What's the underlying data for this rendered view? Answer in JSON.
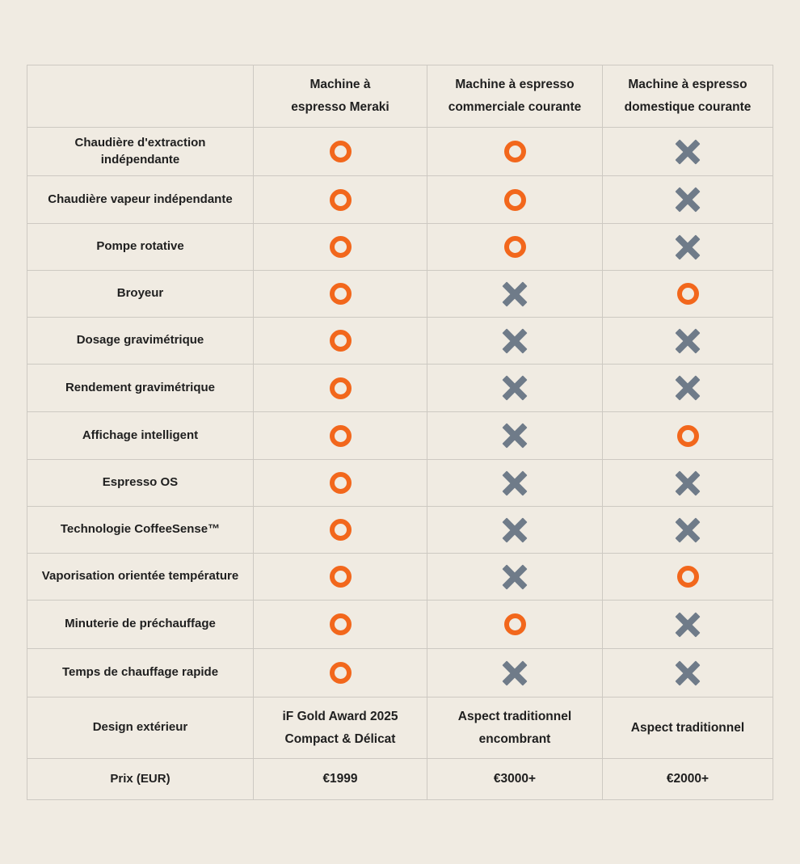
{
  "colors": {
    "bg": "#f0ebe2",
    "border": "#cdc9c2",
    "text": "#1f1f1f",
    "yes": "#f2671c",
    "no": "#6f7b89"
  },
  "symbols": {
    "yes": "orange-ring-icon (fonctionnalité incluse)",
    "no": "gray-cross-icon (fonctionnalité absente)"
  },
  "chart_data": {
    "type": "table",
    "header": [
      "",
      "Machine à\nespresso Meraki",
      "Machine à espresso\ncommerciale courante",
      "Machine à espresso\ndomestique courante"
    ],
    "rows": [
      {
        "label": "Chaudière d'extraction indépendante",
        "values": [
          "yes",
          "yes",
          "no"
        ]
      },
      {
        "label": "Chaudière vapeur indépendante",
        "values": [
          "yes",
          "yes",
          "no"
        ]
      },
      {
        "label": "Pompe rotative",
        "values": [
          "yes",
          "yes",
          "no"
        ]
      },
      {
        "label": "Broyeur",
        "values": [
          "yes",
          "no",
          "yes"
        ]
      },
      {
        "label": "Dosage gravimétrique",
        "values": [
          "yes",
          "no",
          "no"
        ]
      },
      {
        "label": "Rendement gravimétrique",
        "values": [
          "yes",
          "no",
          "no"
        ]
      },
      {
        "label": "Affichage intelligent",
        "values": [
          "yes",
          "no",
          "yes"
        ]
      },
      {
        "label": "Espresso OS",
        "values": [
          "yes",
          "no",
          "no"
        ]
      },
      {
        "label": "Technologie CoffeeSense™",
        "values": [
          "yes",
          "no",
          "no"
        ]
      },
      {
        "label": "Vaporisation orientée température",
        "values": [
          "yes",
          "no",
          "yes"
        ]
      },
      {
        "label": "Minuterie de préchauffage",
        "values": [
          "yes",
          "yes",
          "no"
        ]
      },
      {
        "label": "Temps de chauffage rapide",
        "values": [
          "yes",
          "no",
          "no"
        ]
      },
      {
        "label": "Design extérieur",
        "values": [
          "iF Gold Award 2025\nCompact & Délicat",
          "Aspect traditionnel\nencombrant",
          "Aspect traditionnel"
        ]
      },
      {
        "label": "Prix (EUR)",
        "values": [
          "€1999",
          "€3000+",
          "€2000+"
        ]
      }
    ]
  }
}
